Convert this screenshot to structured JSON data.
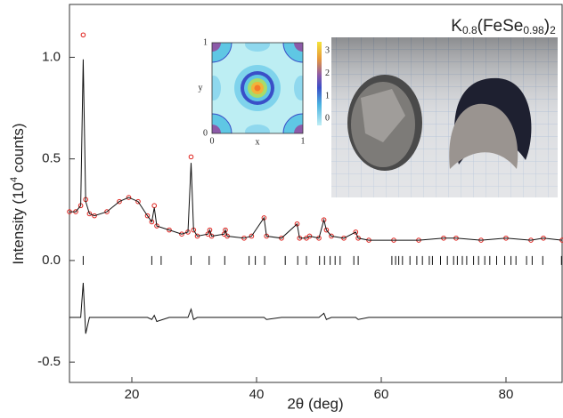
{
  "chart_data": {
    "type": "line",
    "xlabel": "2θ (deg)",
    "ylabel": [
      "Intensity (10",
      "4",
      " counts)"
    ],
    "annotation": [
      "K",
      "0.8",
      "(FeSe",
      "0.98",
      ")",
      "2"
    ],
    "xlim": [
      10,
      89
    ],
    "ylim": [
      -0.6,
      1.26
    ],
    "xticks": [
      20,
      40,
      60,
      80
    ],
    "yticks": [
      -0.5,
      {
        "value": 0,
        "label": "0.0"
      },
      0.5,
      {
        "value": 1,
        "label": "1.0"
      }
    ],
    "x": [
      10,
      11,
      11.8,
      12.2,
      12.6,
      13.2,
      14,
      16,
      18,
      19.5,
      21,
      22.5,
      23.2,
      23.6,
      24,
      26,
      28,
      29,
      29.5,
      29.9,
      30.5,
      32.2,
      32.5,
      32.8,
      34.8,
      35,
      35.3,
      38,
      39.2,
      41.2,
      41.6,
      44,
      46.5,
      46.9,
      48,
      48.5,
      50,
      50.8,
      51.2,
      52,
      54,
      55.9,
      56.3,
      58,
      62,
      66,
      70,
      72,
      76,
      80,
      84,
      86,
      89
    ],
    "series": [
      {
        "color": "#e0201b",
        "marker": "circle",
        "values": [
          0.24,
          0.24,
          0.27,
          1.11,
          0.3,
          0.23,
          0.22,
          0.24,
          0.29,
          0.31,
          0.29,
          0.22,
          0.19,
          0.27,
          0.17,
          0.15,
          0.13,
          0.14,
          0.51,
          0.15,
          0.12,
          0.13,
          0.15,
          0.12,
          0.13,
          0.15,
          0.12,
          0.11,
          0.12,
          0.21,
          0.12,
          0.11,
          0.18,
          0.11,
          0.11,
          0.12,
          0.11,
          0.2,
          0.15,
          0.12,
          0.11,
          0.14,
          0.11,
          0.1,
          0.1,
          0.1,
          0.11,
          0.11,
          0.1,
          0.11,
          0.1,
          0.11,
          0.1
        ]
      },
      {
        "color": "#111111",
        "marker": "line",
        "values": [
          0.24,
          0.24,
          0.27,
          0.99,
          0.29,
          0.23,
          0.22,
          0.24,
          0.29,
          0.31,
          0.29,
          0.22,
          0.19,
          0.26,
          0.17,
          0.15,
          0.13,
          0.14,
          0.48,
          0.15,
          0.12,
          0.13,
          0.15,
          0.12,
          0.13,
          0.15,
          0.12,
          0.11,
          0.12,
          0.21,
          0.12,
          0.11,
          0.18,
          0.11,
          0.11,
          0.12,
          0.11,
          0.2,
          0.15,
          0.12,
          0.11,
          0.14,
          0.11,
          0.1,
          0.1,
          0.1,
          0.11,
          0.11,
          0.1,
          0.11,
          0.1,
          0.11,
          0.1
        ]
      },
      {
        "color": "#111111",
        "marker": "line",
        "values": [
          -0.28,
          -0.28,
          -0.28,
          -0.11,
          -0.36,
          -0.28,
          -0.28,
          -0.28,
          -0.28,
          -0.28,
          -0.28,
          -0.28,
          -0.29,
          -0.27,
          -0.3,
          -0.28,
          -0.28,
          -0.28,
          -0.24,
          -0.29,
          -0.28,
          -0.28,
          -0.28,
          -0.28,
          -0.28,
          -0.28,
          -0.28,
          -0.28,
          -0.28,
          -0.28,
          -0.29,
          -0.28,
          -0.28,
          -0.28,
          -0.28,
          -0.28,
          -0.28,
          -0.26,
          -0.29,
          -0.28,
          -0.28,
          -0.28,
          -0.29,
          -0.28,
          -0.28,
          -0.28,
          -0.28,
          -0.28,
          -0.28,
          -0.28,
          -0.28,
          -0.28,
          -0.28
        ]
      }
    ],
    "reflections": [
      12.2,
      23.2,
      24.7,
      29.5,
      32.4,
      34.9,
      38.8,
      39.8,
      41.3,
      44.6,
      46.6,
      48,
      50.1,
      50.9,
      51.8,
      52.6,
      53.4,
      55.6,
      56.3,
      61.7,
      62.3,
      62.8,
      63.4,
      64.6,
      65.7,
      66.6,
      67.7,
      68.2,
      69.5,
      70.6,
      71.6,
      72.2,
      73,
      73.7,
      74.8,
      75.6,
      76.6,
      77.4,
      78.5,
      79.8,
      80.8,
      81.6,
      83.3,
      84.2,
      85.9,
      88.9
    ],
    "inset": {
      "xlabel": "x",
      "ylabel": "y",
      "xticks": [
        0,
        1
      ],
      "yticks": [
        0,
        1
      ],
      "clim": [
        -0.3,
        3.4
      ],
      "cticks": [
        0,
        1,
        2,
        3
      ]
    }
  }
}
